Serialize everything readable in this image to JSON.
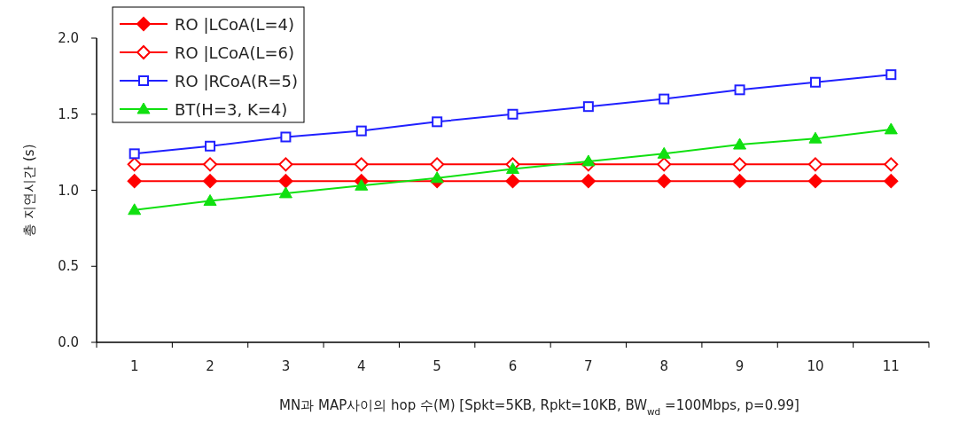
{
  "chart_data": {
    "type": "line",
    "xlabel": "MN과 MAP사이의 hop 수(M) [Spkt=5KB, Rpkt=10KB, BW$_{wd}$ =100Mbps, p=0.99]",
    "ylabel": "총 지연시간 (s)",
    "categories": [
      "1",
      "2",
      "3",
      "4",
      "5",
      "6",
      "7",
      "8",
      "9",
      "10",
      "11"
    ],
    "ylim": [
      0,
      2
    ],
    "yticks": [
      {
        "value": 0,
        "label": "0.0"
      },
      {
        "value": 0.5,
        "label": "0.5"
      },
      {
        "value": 1,
        "label": "1.0"
      },
      {
        "value": 1.5,
        "label": "1.5"
      },
      {
        "value": 2,
        "label": "2.0"
      }
    ],
    "legend": "top left",
    "grid": false,
    "line_style": "solid",
    "series": [
      {
        "name": "RO |LCoA(L=4)",
        "color": "#ff0000",
        "marker": "diamond",
        "values": [
          1.06,
          1.06,
          1.06,
          1.06,
          1.06,
          1.06,
          1.06,
          1.06,
          1.06,
          1.06,
          1.06
        ]
      },
      {
        "name": "RO |LCoA(L=6)",
        "color": "#ff0000",
        "marker": "diamond",
        "values": [
          1.17,
          1.17,
          1.17,
          1.17,
          1.17,
          1.17,
          1.17,
          1.17,
          1.17,
          1.17,
          1.17
        ]
      },
      {
        "name": "RO |RCoA(R=5)",
        "color": "#2020ff",
        "marker": "square",
        "values": [
          1.24,
          1.29,
          1.35,
          1.39,
          1.45,
          1.5,
          1.55,
          1.6,
          1.66,
          1.71,
          1.76
        ]
      },
      {
        "name": "BT(H=3, K=4)",
        "color": "#10e010",
        "marker": "triangle",
        "values": [
          0.87,
          0.93,
          0.98,
          1.03,
          1.08,
          1.14,
          1.19,
          1.24,
          1.3,
          1.34,
          1.4
        ]
      }
    ]
  }
}
